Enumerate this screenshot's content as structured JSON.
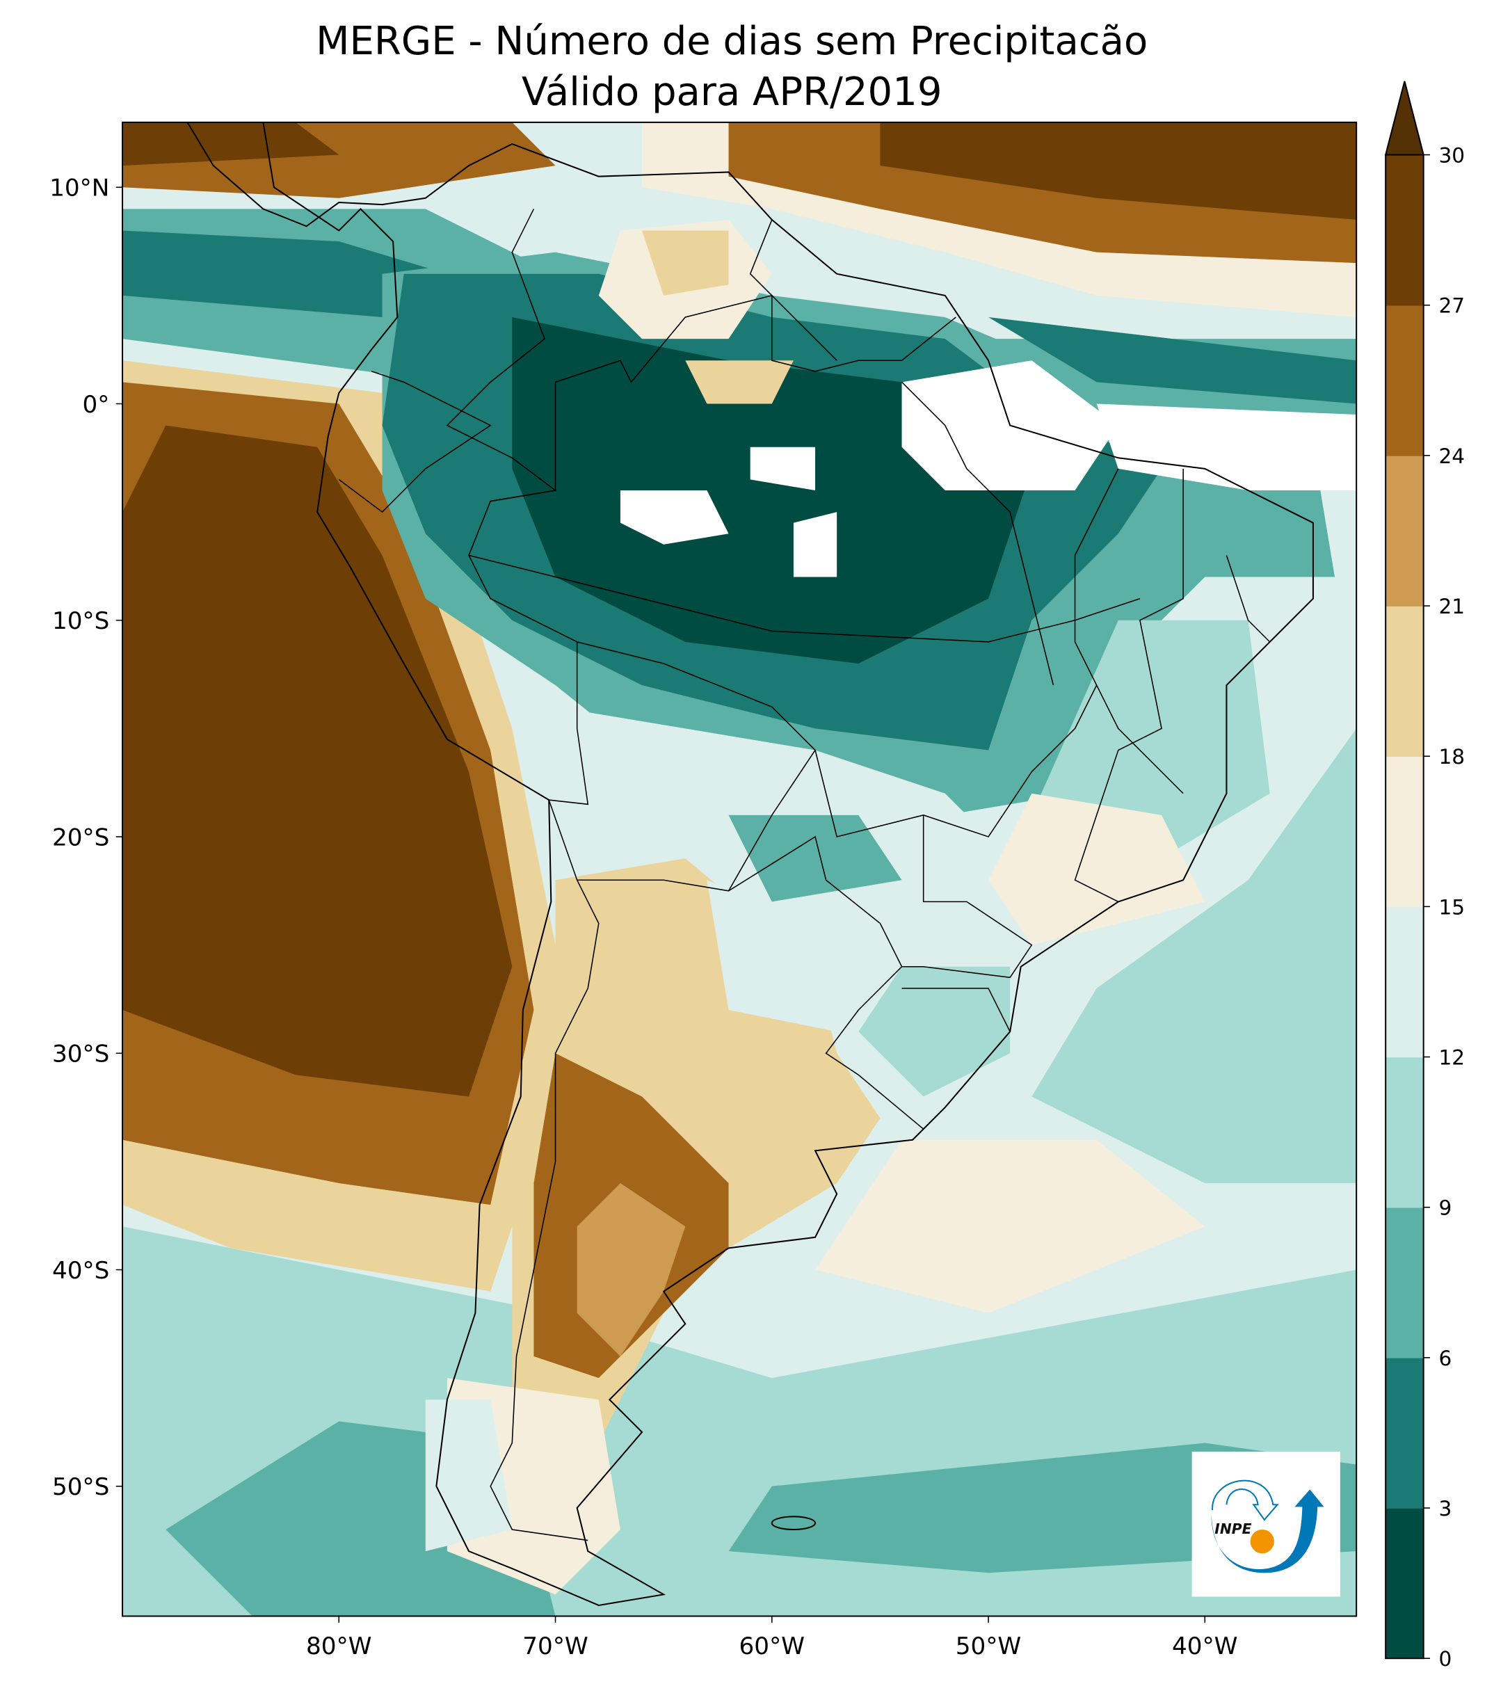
{
  "title": {
    "line1": "MERGE - Número de dias sem Precipitacão",
    "line2": "Válido para APR/2019"
  },
  "map": {
    "lon_range": [
      -90,
      -33
    ],
    "lat_range": [
      -56,
      13
    ],
    "y_ticks": [
      {
        "lat": 10,
        "label": "10°N"
      },
      {
        "lat": 0,
        "label": "0°"
      },
      {
        "lat": -10,
        "label": "10°S"
      },
      {
        "lat": -20,
        "label": "20°S"
      },
      {
        "lat": -30,
        "label": "30°S"
      },
      {
        "lat": -40,
        "label": "40°S"
      },
      {
        "lat": -50,
        "label": "50°S"
      }
    ],
    "x_ticks": [
      {
        "lon": -80,
        "label": "80°W"
      },
      {
        "lon": -70,
        "label": "70°W"
      },
      {
        "lon": -60,
        "label": "60°W"
      },
      {
        "lon": -50,
        "label": "50°W"
      },
      {
        "lon": -40,
        "label": "40°W"
      }
    ],
    "no_data_color": "#ffffff"
  },
  "colorbar": {
    "ticks": [
      "0",
      "3",
      "6",
      "9",
      "12",
      "15",
      "18",
      "21",
      "24",
      "27",
      "30"
    ],
    "colors": [
      "#004c42",
      "#1b7b74",
      "#5cb1a6",
      "#a5dbd2",
      "#dcefed",
      "#f5eedc",
      "#ead49c",
      "#cd9c52",
      "#a26519",
      "#6d3f07"
    ],
    "extend_max_color": "#543005"
  },
  "logo": {
    "text": "INPE",
    "blue": "#0077b6",
    "orange": "#f29400"
  }
}
